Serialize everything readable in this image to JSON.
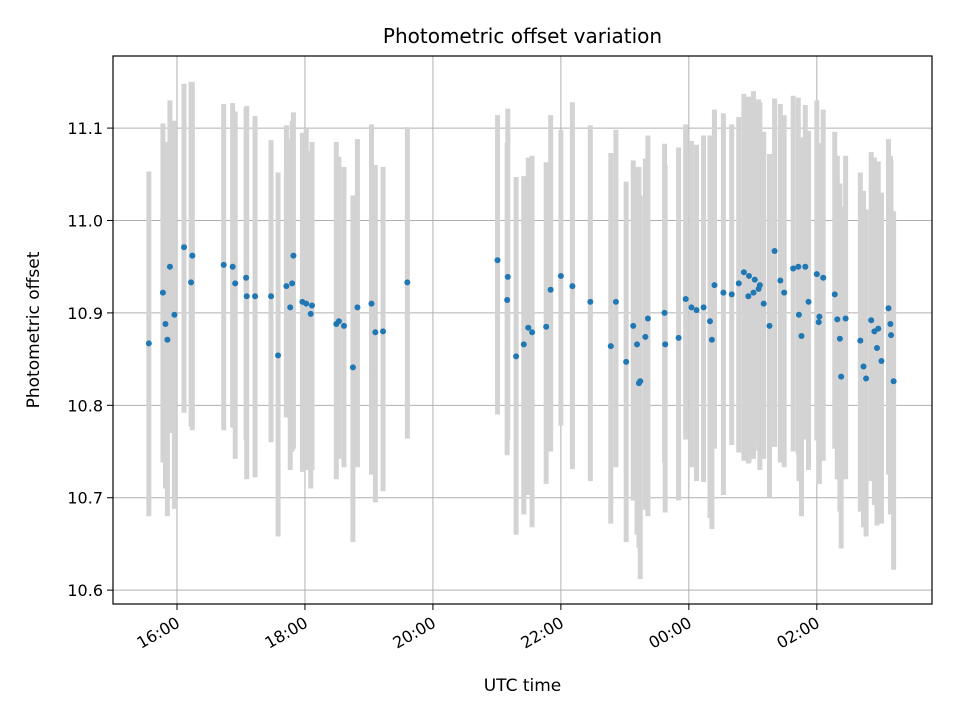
{
  "chart_data": {
    "type": "scatter",
    "title": "Photometric offset variation",
    "xlabel": "UTC time",
    "ylabel": "Photometric offset",
    "x_unit": "hours since 00:00 UTC (negative = previous day)",
    "xlim": [
      -9.0,
      3.8
    ],
    "ylim": [
      10.585,
      11.178
    ],
    "x_ticks": [
      {
        "value": -8,
        "label": "16:00"
      },
      {
        "value": -6,
        "label": "18:00"
      },
      {
        "value": -4,
        "label": "20:00"
      },
      {
        "value": -2,
        "label": "22:00"
      },
      {
        "value": 0,
        "label": "00:00"
      },
      {
        "value": 2,
        "label": "02:00"
      }
    ],
    "y_ticks": [
      {
        "value": 10.6,
        "label": "10.6"
      },
      {
        "value": 10.7,
        "label": "10.7"
      },
      {
        "value": 10.8,
        "label": "10.8"
      },
      {
        "value": 10.9,
        "label": "10.9"
      },
      {
        "value": 11.0,
        "label": "11.0"
      },
      {
        "value": 11.1,
        "label": "11.1"
      }
    ],
    "grid": true,
    "point_color": "#1f77b4",
    "errorbar_color": "#d3d3d3",
    "points": [
      [
        -8.44,
        10.867,
        10.68,
        11.053
      ],
      [
        -8.22,
        10.922,
        10.738,
        11.105
      ],
      [
        -8.18,
        10.888,
        10.71,
        11.085
      ],
      [
        -8.15,
        10.871,
        10.68,
        11.068
      ],
      [
        -8.11,
        10.95,
        10.77,
        11.13
      ],
      [
        -8.04,
        10.898,
        10.688,
        11.108
      ],
      [
        -7.89,
        10.971,
        10.792,
        11.148
      ],
      [
        -7.78,
        10.933,
        10.777,
        11.15
      ],
      [
        -7.76,
        10.962,
        10.773,
        11.15
      ],
      [
        -7.27,
        10.952,
        10.773,
        11.126
      ],
      [
        -7.13,
        10.95,
        10.776,
        11.127
      ],
      [
        -7.09,
        10.932,
        10.742,
        11.118
      ],
      [
        -6.92,
        10.938,
        10.762,
        11.122
      ],
      [
        -6.91,
        10.918,
        10.72,
        11.124
      ],
      [
        -6.78,
        10.918,
        10.722,
        11.113
      ],
      [
        -6.53,
        10.918,
        10.76,
        11.087
      ],
      [
        -6.42,
        10.854,
        10.658,
        11.052
      ],
      [
        -6.29,
        10.929,
        10.787,
        11.103
      ],
      [
        -6.23,
        10.906,
        10.73,
        11.088
      ],
      [
        -6.18,
        10.962,
        10.753,
        11.117
      ],
      [
        -6.2,
        10.932,
        10.75,
        11.108
      ],
      [
        -6.04,
        10.912,
        10.728,
        11.095
      ],
      [
        -5.98,
        10.91,
        10.73,
        11.1
      ],
      [
        -5.91,
        10.899,
        10.71,
        11.075
      ],
      [
        -5.89,
        10.908,
        10.73,
        11.085
      ],
      [
        -5.51,
        10.888,
        10.72,
        11.085
      ],
      [
        -5.47,
        10.891,
        10.742,
        11.069
      ],
      [
        -5.39,
        10.886,
        10.733,
        11.058
      ],
      [
        -5.25,
        10.841,
        10.652,
        11.027
      ],
      [
        -5.18,
        10.906,
        10.733,
        11.088
      ],
      [
        -4.96,
        10.91,
        10.725,
        11.104
      ],
      [
        -4.9,
        10.879,
        10.695,
        11.06
      ],
      [
        -4.78,
        10.88,
        10.707,
        11.058
      ],
      [
        -4.4,
        10.933,
        10.764,
        11.101
      ],
      [
        -2.99,
        10.957,
        10.79,
        11.114
      ],
      [
        -2.84,
        10.914,
        10.746,
        11.084
      ],
      [
        -2.83,
        10.939,
        10.762,
        11.121
      ],
      [
        -2.7,
        10.853,
        10.66,
        11.047
      ],
      [
        -2.58,
        10.866,
        10.682,
        11.048
      ],
      [
        -2.51,
        10.884,
        10.703,
        11.068
      ],
      [
        -2.45,
        10.879,
        10.668,
        11.07
      ],
      [
        -2.23,
        10.885,
        10.715,
        11.063
      ],
      [
        -2.16,
        10.925,
        10.75,
        11.114
      ],
      [
        -2.0,
        10.94,
        10.778,
        11.098
      ],
      [
        -1.82,
        10.929,
        10.731,
        11.128
      ],
      [
        -1.54,
        10.912,
        10.718,
        11.103
      ],
      [
        -1.22,
        10.864,
        10.672,
        11.073
      ],
      [
        -1.14,
        10.912,
        10.733,
        11.098
      ],
      [
        -0.98,
        10.847,
        10.652,
        11.042
      ],
      [
        -0.87,
        10.886,
        10.697,
        11.065
      ],
      [
        -0.81,
        10.866,
        10.66,
        11.058
      ],
      [
        -0.78,
        10.824,
        10.646,
        11.058
      ],
      [
        -0.76,
        10.826,
        10.612,
        11.027
      ],
      [
        -0.68,
        10.874,
        10.687,
        11.067
      ],
      [
        -0.64,
        10.894,
        10.68,
        11.092
      ],
      [
        -0.38,
        10.9,
        10.738,
        11.083
      ],
      [
        -0.37,
        10.866,
        10.684,
        11.06
      ],
      [
        -0.16,
        10.873,
        10.697,
        11.079
      ],
      [
        -0.05,
        10.915,
        10.763,
        11.104
      ],
      [
        0.04,
        10.906,
        10.733,
        11.086
      ],
      [
        0.12,
        10.903,
        10.718,
        11.082
      ],
      [
        0.23,
        10.906,
        10.717,
        11.092
      ],
      [
        0.33,
        10.891,
        10.678,
        11.092
      ],
      [
        0.36,
        10.871,
        10.666,
        11.082
      ],
      [
        0.4,
        10.93,
        10.753,
        11.12
      ],
      [
        0.54,
        10.922,
        10.703,
        11.116
      ],
      [
        0.67,
        10.92,
        10.757,
        11.104
      ],
      [
        0.78,
        10.932,
        10.749,
        11.112
      ],
      [
        0.86,
        10.944,
        10.74,
        11.137
      ],
      [
        0.93,
        10.918,
        10.737,
        11.134
      ],
      [
        0.94,
        10.94,
        10.738,
        11.132
      ],
      [
        1.01,
        10.922,
        10.742,
        11.14
      ],
      [
        1.03,
        10.936,
        10.762,
        11.127
      ],
      [
        1.09,
        10.926,
        10.751,
        11.131
      ],
      [
        1.11,
        10.93,
        10.73,
        11.128
      ],
      [
        1.17,
        10.91,
        10.742,
        11.096
      ],
      [
        1.26,
        10.886,
        10.7,
        11.072
      ],
      [
        1.34,
        10.967,
        10.755,
        11.132
      ],
      [
        1.43,
        10.935,
        10.738,
        11.126
      ],
      [
        1.49,
        10.922,
        10.733,
        11.114
      ],
      [
        1.63,
        10.948,
        10.75,
        11.135
      ],
      [
        1.71,
        10.95,
        10.747,
        11.133
      ],
      [
        1.72,
        10.898,
        10.718,
        11.087
      ],
      [
        1.76,
        10.875,
        10.68,
        11.09
      ],
      [
        1.82,
        10.95,
        10.763,
        11.125
      ],
      [
        1.87,
        10.912,
        10.73,
        11.097
      ],
      [
        2.0,
        10.942,
        10.762,
        11.13
      ],
      [
        2.03,
        10.89,
        10.715,
        11.069
      ],
      [
        2.04,
        10.896,
        10.715,
        11.084
      ],
      [
        2.1,
        10.938,
        10.74,
        11.12
      ],
      [
        2.28,
        10.92,
        10.753,
        11.096
      ],
      [
        2.32,
        10.893,
        10.72,
        11.07
      ],
      [
        2.36,
        10.872,
        10.685,
        11.04
      ],
      [
        2.38,
        10.831,
        10.645,
        11.015
      ],
      [
        2.45,
        10.894,
        10.72,
        11.07
      ],
      [
        2.68,
        10.87,
        10.685,
        11.052
      ],
      [
        2.73,
        10.842,
        10.668,
        11.032
      ],
      [
        2.77,
        10.829,
        10.658,
        11.012
      ],
      [
        2.85,
        10.892,
        10.718,
        11.074
      ],
      [
        2.9,
        10.88,
        10.692,
        11.068
      ],
      [
        2.94,
        10.862,
        10.67,
        11.05
      ],
      [
        2.96,
        10.883,
        10.68,
        11.064
      ],
      [
        3.01,
        10.848,
        10.672,
        11.03
      ],
      [
        3.12,
        10.905,
        10.725,
        11.088
      ],
      [
        3.15,
        10.888,
        10.682,
        11.07
      ],
      [
        3.16,
        10.876,
        10.686,
        11.066
      ],
      [
        3.2,
        10.826,
        10.622,
        11.01
      ]
    ]
  }
}
